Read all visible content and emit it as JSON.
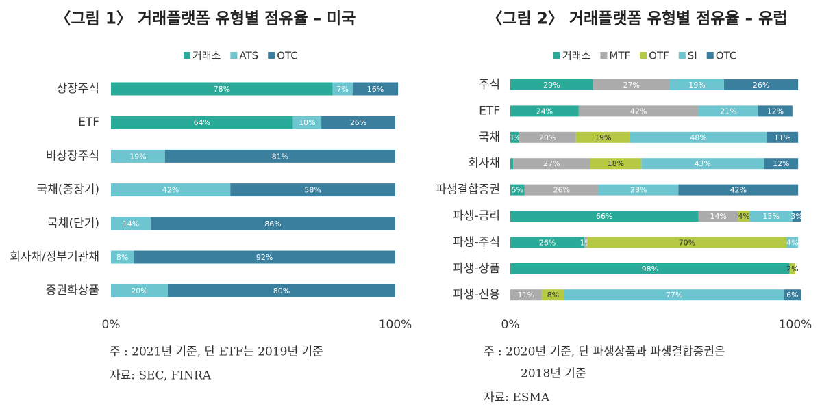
{
  "chart_data": [
    {
      "type": "bar",
      "orientation": "horizontal",
      "stacked": true,
      "title": "〈그림 1〉 거래플랫폼 유형별 점유율 – 미국",
      "categories": [
        "상장주식",
        "ETF",
        "비상장주식",
        "국채(중장기)",
        "국채(단기)",
        "회사채/정부기관채",
        "증권화상품"
      ],
      "series": [
        {
          "name": "거래소",
          "color": "#2aab99",
          "values": [
            78,
            64,
            null,
            null,
            null,
            null,
            null
          ],
          "value_labels": [
            "78%",
            "64%",
            null,
            null,
            null,
            null,
            null
          ]
        },
        {
          "name": "ATS",
          "color": "#6cc5cf",
          "values": [
            7,
            10,
            19,
            42,
            14,
            8,
            20
          ],
          "value_labels": [
            "7%",
            "10%",
            "19%",
            "42%",
            "14%",
            "8%",
            "20%"
          ]
        },
        {
          "name": "OTC",
          "color": "#3b7f9e",
          "values": [
            16,
            26,
            81,
            58,
            86,
            92,
            80
          ],
          "value_labels": [
            "16%",
            "26%",
            "81%",
            "58%",
            "86%",
            "92%",
            "80%"
          ]
        }
      ],
      "xlim": [
        0,
        100
      ],
      "xticks": [
        {
          "value": 0,
          "label": "0%"
        },
        {
          "value": 100,
          "label": "100%"
        }
      ],
      "notes": [
        "주   : 2021년 기준, 단 ETF는 2019년 기준",
        "자료: SEC, FINRA"
      ]
    },
    {
      "type": "bar",
      "orientation": "horizontal",
      "stacked": true,
      "title": "〈그림 2〉 거래플랫폼 유형별 점유율 – 유럽",
      "categories": [
        "주식",
        "ETF",
        "국채",
        "회사채",
        "파생결합증권",
        "파생-금리",
        "파생-주식",
        "파생-상품",
        "파생-신용"
      ],
      "series": [
        {
          "name": "거래소",
          "color": "#2aab99",
          "values": [
            29,
            24,
            3,
            1,
            5,
            66,
            26,
            98,
            null
          ],
          "value_labels": [
            "29%",
            "24%",
            "3%",
            null,
            "5%",
            "66%",
            "26%",
            "98%",
            null
          ]
        },
        {
          "name": "MTF",
          "color": "#ababab",
          "values": [
            27,
            42,
            20,
            27,
            26,
            14,
            1,
            null,
            11
          ],
          "value_labels": [
            "27%",
            "42%",
            "20%",
            "27%",
            "26%",
            "14%",
            "1%",
            null,
            "11%"
          ]
        },
        {
          "name": "OTF",
          "color": "#b5c945",
          "values": [
            null,
            null,
            19,
            18,
            null,
            4,
            70,
            2,
            8
          ],
          "value_labels": [
            null,
            null,
            "19%",
            "18%",
            null,
            "4%",
            "70%",
            "2%",
            "8%"
          ]
        },
        {
          "name": "SI",
          "color": "#6cc5cf",
          "values": [
            19,
            21,
            48,
            43,
            28,
            15,
            4,
            null,
            77
          ],
          "value_labels": [
            "19%",
            "21%",
            "48%",
            "43%",
            "28%",
            "15%",
            "4%",
            null,
            "77%"
          ]
        },
        {
          "name": "OTC",
          "color": "#3b7f9e",
          "values": [
            26,
            12,
            11,
            12,
            42,
            3,
            null,
            null,
            6
          ],
          "value_labels": [
            "26%",
            "12%",
            "11%",
            "12%",
            "42%",
            "3%",
            null,
            null,
            "6%"
          ]
        }
      ],
      "xlim": [
        0,
        100
      ],
      "xticks": [
        {
          "value": 0,
          "label": "0%"
        },
        {
          "value": 100,
          "label": "100%"
        }
      ],
      "notes": [
        "주   : 2020년 기준, 단 파생상품과 파생결합증권은",
        "2018년 기준",
        "자료: ESMA"
      ]
    }
  ]
}
